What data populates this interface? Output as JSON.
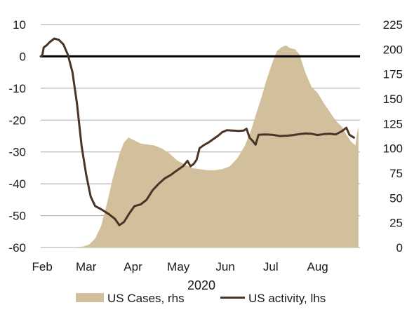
{
  "chart_data": {
    "type": "area+line",
    "colors": {
      "cases_fill": "#d2bf9b",
      "activity_line": "#4a3427",
      "zero_line": "#000000",
      "grid": "#a8a8a8"
    },
    "x": {
      "tick_labels": [
        "Feb",
        "Mar",
        "Apr",
        "May",
        "Jun",
        "Jul",
        "Aug"
      ],
      "tick_dates": [
        "2020-02-01",
        "2020-03-01",
        "2020-04-01",
        "2020-05-01",
        "2020-06-01",
        "2020-07-01",
        "2020-08-01"
      ],
      "label": "2020",
      "range": [
        "2020-01-31",
        "2020-08-29"
      ]
    },
    "y_left": {
      "range": [
        -60,
        10
      ],
      "ticks": [
        10,
        0,
        -10,
        -20,
        -30,
        -40,
        -50,
        -60
      ]
    },
    "y_right": {
      "range": [
        0,
        225
      ],
      "ticks": [
        225,
        200,
        175,
        150,
        125,
        100,
        75,
        50,
        25,
        0
      ]
    },
    "legend": {
      "position": "bottom"
    },
    "series": [
      {
        "name": "US Cases, rhs",
        "type": "area",
        "axis": "right",
        "points": [
          [
            "2020-01-31",
            0
          ],
          [
            "2020-02-20",
            0
          ],
          [
            "2020-02-28",
            1
          ],
          [
            "2020-03-03",
            3
          ],
          [
            "2020-03-07",
            9
          ],
          [
            "2020-03-11",
            22
          ],
          [
            "2020-03-15",
            46
          ],
          [
            "2020-03-19",
            72
          ],
          [
            "2020-03-23",
            94
          ],
          [
            "2020-03-26",
            106
          ],
          [
            "2020-03-29",
            111
          ],
          [
            "2020-04-02",
            108
          ],
          [
            "2020-04-06",
            105
          ],
          [
            "2020-04-10",
            104
          ],
          [
            "2020-04-15",
            103
          ],
          [
            "2020-04-20",
            100
          ],
          [
            "2020-04-25",
            95
          ],
          [
            "2020-04-30",
            88
          ],
          [
            "2020-05-05",
            84
          ],
          [
            "2020-05-10",
            80
          ],
          [
            "2020-05-15",
            79
          ],
          [
            "2020-05-20",
            78
          ],
          [
            "2020-05-25",
            78
          ],
          [
            "2020-05-30",
            79
          ],
          [
            "2020-06-04",
            82
          ],
          [
            "2020-06-09",
            90
          ],
          [
            "2020-06-14",
            103
          ],
          [
            "2020-06-18",
            118
          ],
          [
            "2020-06-22",
            138
          ],
          [
            "2020-06-25",
            152
          ],
          [
            "2020-06-28",
            168
          ],
          [
            "2020-07-02",
            186
          ],
          [
            "2020-07-05",
            198
          ],
          [
            "2020-07-08",
            202
          ],
          [
            "2020-07-11",
            204
          ],
          [
            "2020-07-14",
            201
          ],
          [
            "2020-07-17",
            200
          ],
          [
            "2020-07-20",
            195
          ],
          [
            "2020-07-24",
            176
          ],
          [
            "2020-07-28",
            162
          ],
          [
            "2020-08-01",
            156
          ],
          [
            "2020-08-05",
            146
          ],
          [
            "2020-08-09",
            137
          ],
          [
            "2020-08-13",
            128
          ],
          [
            "2020-08-17",
            122
          ],
          [
            "2020-08-20",
            114
          ],
          [
            "2020-08-23",
            107
          ],
          [
            "2020-08-26",
            103
          ],
          [
            "2020-08-27",
            115
          ],
          [
            "2020-08-28",
            122
          ]
        ]
      },
      {
        "name": "US activity, lhs",
        "type": "line",
        "axis": "left",
        "points": [
          [
            "2020-01-31",
            0
          ],
          [
            "2020-02-01",
            0.3
          ],
          [
            "2020-02-02",
            2.8
          ],
          [
            "2020-02-04",
            3.5
          ],
          [
            "2020-02-06",
            4.5
          ],
          [
            "2020-02-09",
            5.6
          ],
          [
            "2020-02-12",
            5.2
          ],
          [
            "2020-02-15",
            3.8
          ],
          [
            "2020-02-18",
            0.5
          ],
          [
            "2020-02-21",
            -5
          ],
          [
            "2020-02-24",
            -15
          ],
          [
            "2020-02-27",
            -28
          ],
          [
            "2020-03-01",
            -37
          ],
          [
            "2020-03-04",
            -44
          ],
          [
            "2020-03-07",
            -47
          ],
          [
            "2020-03-11",
            -48
          ],
          [
            "2020-03-16",
            -49.5
          ],
          [
            "2020-03-20",
            -51
          ],
          [
            "2020-03-23",
            -53
          ],
          [
            "2020-03-26",
            -52
          ],
          [
            "2020-03-30",
            -49
          ],
          [
            "2020-04-02",
            -47
          ],
          [
            "2020-04-06",
            -46.5
          ],
          [
            "2020-04-10",
            -45
          ],
          [
            "2020-04-14",
            -42
          ],
          [
            "2020-04-18",
            -40
          ],
          [
            "2020-04-22",
            -38.3
          ],
          [
            "2020-04-26",
            -37.2
          ],
          [
            "2020-04-30",
            -35.8
          ],
          [
            "2020-05-04",
            -34.5
          ],
          [
            "2020-05-07",
            -32.8
          ],
          [
            "2020-05-09",
            -34.5
          ],
          [
            "2020-05-11",
            -33.8
          ],
          [
            "2020-05-13",
            -32.5
          ],
          [
            "2020-05-15",
            -28.8
          ],
          [
            "2020-05-18",
            -27.8
          ],
          [
            "2020-05-21",
            -27
          ],
          [
            "2020-05-24",
            -26
          ],
          [
            "2020-05-27",
            -25
          ],
          [
            "2020-05-30",
            -23.8
          ],
          [
            "2020-06-02",
            -23.2
          ],
          [
            "2020-06-06",
            -23.3
          ],
          [
            "2020-06-10",
            -23.4
          ],
          [
            "2020-06-13",
            -23.3
          ],
          [
            "2020-06-15",
            -22.7
          ],
          [
            "2020-06-17",
            -25.5
          ],
          [
            "2020-06-19",
            -26.5
          ],
          [
            "2020-06-21",
            -27.7
          ],
          [
            "2020-06-23",
            -24.6
          ],
          [
            "2020-06-27",
            -24.5
          ],
          [
            "2020-07-02",
            -24.6
          ],
          [
            "2020-07-07",
            -25
          ],
          [
            "2020-07-12",
            -24.9
          ],
          [
            "2020-07-16",
            -24.7
          ],
          [
            "2020-07-20",
            -24.4
          ],
          [
            "2020-07-24",
            -24.2
          ],
          [
            "2020-07-28",
            -24.3
          ],
          [
            "2020-08-01",
            -24.7
          ],
          [
            "2020-08-05",
            -24.4
          ],
          [
            "2020-08-09",
            -24.3
          ],
          [
            "2020-08-13",
            -24.5
          ],
          [
            "2020-08-17",
            -23.5
          ],
          [
            "2020-08-20",
            -22.4
          ],
          [
            "2020-08-22",
            -24.6
          ],
          [
            "2020-08-25",
            -25.5
          ]
        ]
      }
    ]
  }
}
